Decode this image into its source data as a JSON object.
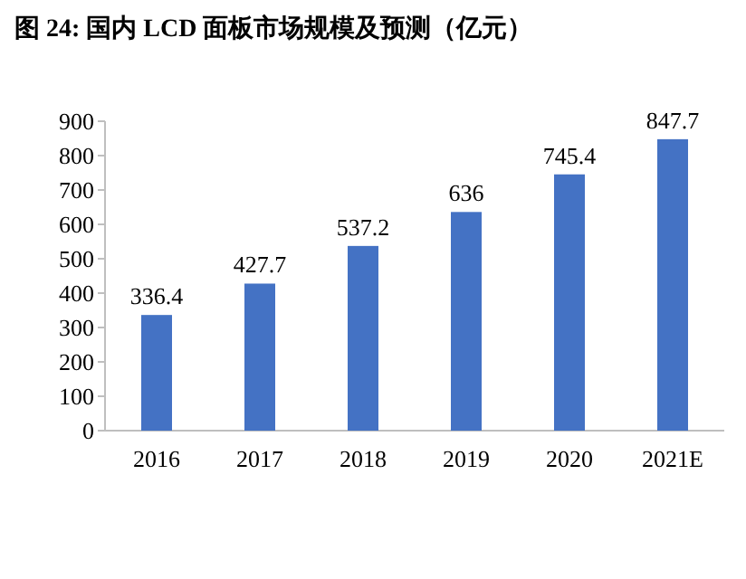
{
  "chart_data": {
    "type": "bar",
    "title": "图 24:  国内 LCD 面板市场规模及预测（亿元）",
    "categories": [
      "2016",
      "2017",
      "2018",
      "2019",
      "2020",
      "2021E"
    ],
    "values": [
      336.4,
      427.7,
      537.2,
      636,
      745.4,
      847.7
    ],
    "color": "#4472c4",
    "ylim": [
      0,
      900
    ],
    "yticks": [
      0,
      100,
      200,
      300,
      400,
      500,
      600,
      700,
      800,
      900
    ],
    "data_labels": true,
    "grid": false
  }
}
